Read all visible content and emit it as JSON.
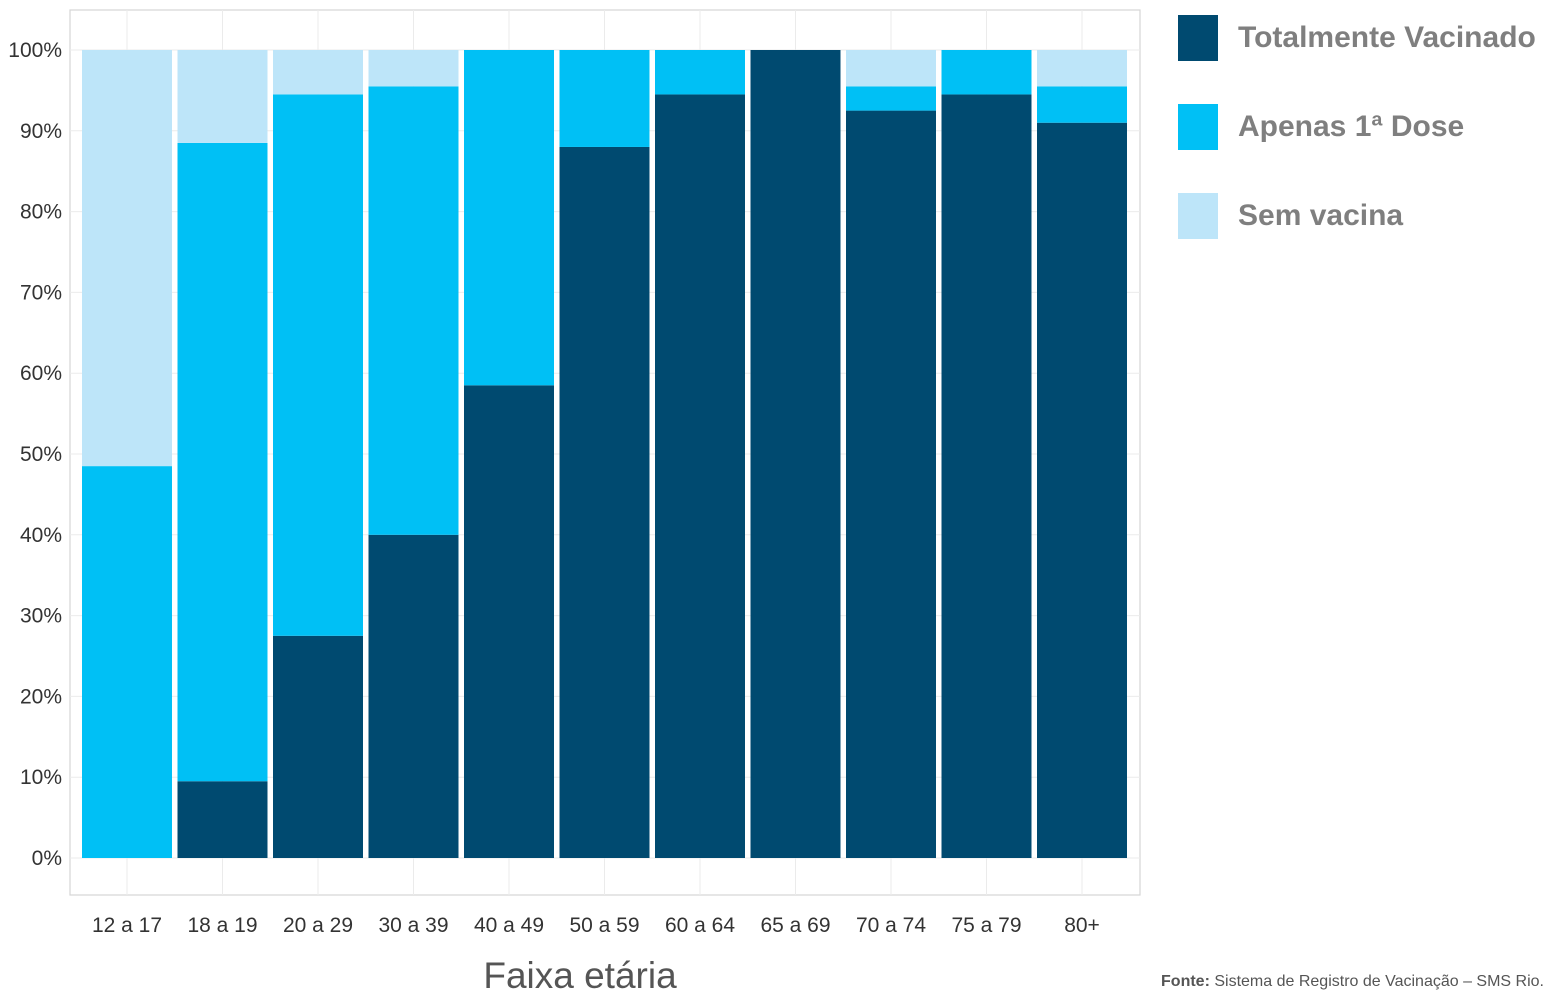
{
  "chart_data": {
    "type": "bar",
    "stacked": true,
    "percent": true,
    "categories": [
      "12 a 17",
      "18 a 19",
      "20 a 29",
      "30 a 39",
      "40 a 49",
      "50 a 59",
      "60 a 64",
      "65 a 69",
      "70 a 74",
      "75 a 79",
      "80+"
    ],
    "series": [
      {
        "name": "Totalmente Vacinado",
        "color": "#004a70",
        "values": [
          0,
          9.5,
          27.5,
          40,
          58.5,
          88,
          94.5,
          100,
          92.5,
          94.5,
          91
        ]
      },
      {
        "name": "Apenas 1ª Dose",
        "color": "#00c0f5",
        "values": [
          48.5,
          79,
          67,
          55.5,
          41.5,
          12,
          5.5,
          0,
          3,
          5.5,
          4.5
        ]
      },
      {
        "name": "Sem vacina",
        "color": "#bde5f9",
        "values": [
          51.5,
          11.5,
          5.5,
          4.5,
          0,
          0,
          0,
          0,
          4.5,
          0,
          4.5
        ]
      }
    ],
    "ylim": [
      0,
      100
    ],
    "yticks": [
      "0%",
      "10%",
      "20%",
      "30%",
      "40%",
      "50%",
      "60%",
      "70%",
      "80%",
      "90%",
      "100%"
    ],
    "xlabel": "Faixa etária",
    "ylabel": "",
    "legend_position": "right"
  },
  "legend": [
    {
      "label": "Totalmente Vacinado",
      "color": "#004a70"
    },
    {
      "label": "Apenas 1ª Dose",
      "color": "#00c0f5"
    },
    {
      "label": "Sem vacina",
      "color": "#bde5f9"
    }
  ],
  "source": {
    "prefix": "Fonte:",
    "text": " Sistema de Registro de Vacinação – SMS Rio."
  }
}
